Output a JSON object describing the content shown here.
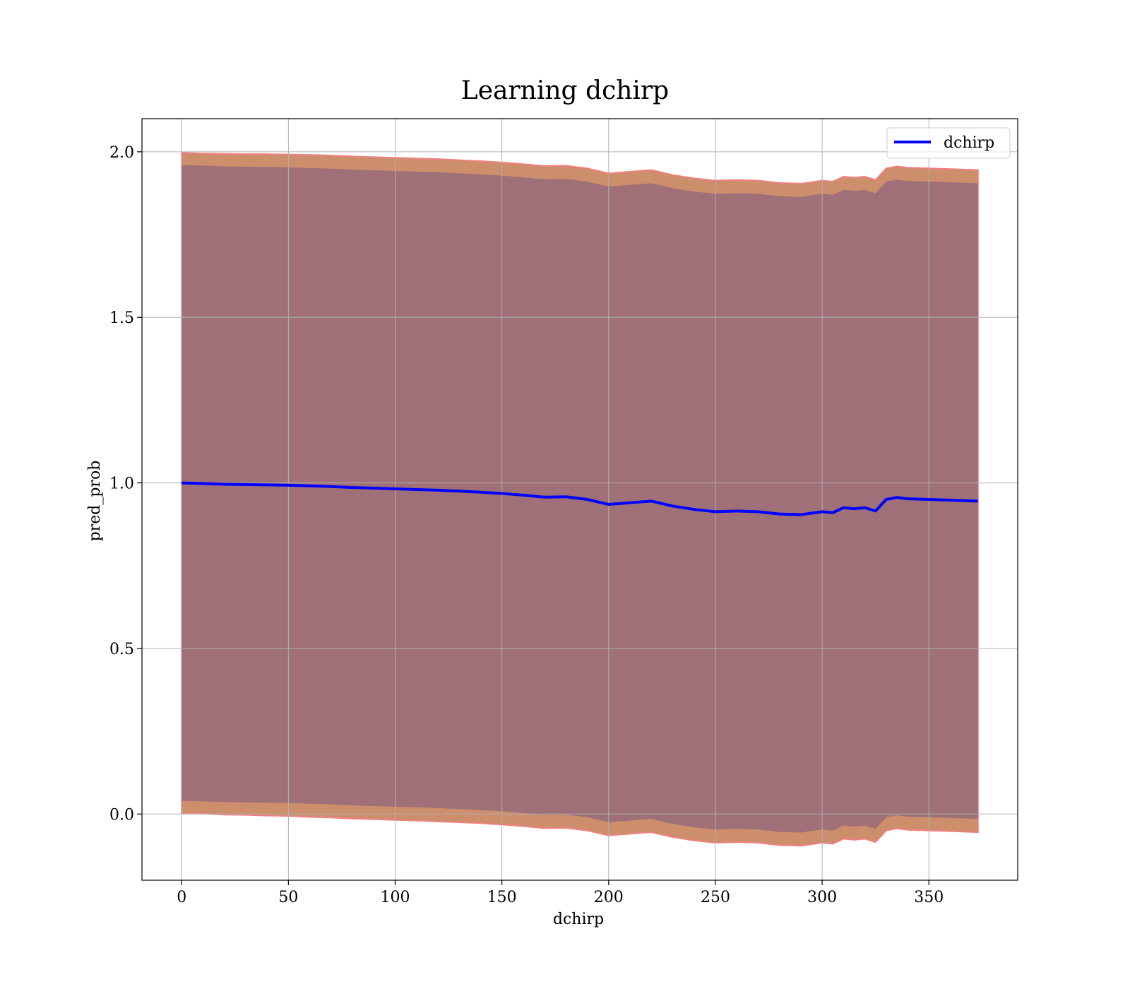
{
  "chart_data": {
    "type": "line",
    "title": "Learning dchirp",
    "xlabel": "dchirp",
    "ylabel": "pred_prob",
    "xlim": [
      -18.6,
      391.6
    ],
    "ylim": [
      -0.2,
      2.1
    ],
    "xticks": [
      0,
      50,
      100,
      150,
      200,
      250,
      300,
      350
    ],
    "xtick_labels": [
      "0",
      "50",
      "100",
      "150",
      "200",
      "250",
      "300",
      "350"
    ],
    "yticks": [
      0.0,
      0.5,
      1.0,
      1.5,
      2.0
    ],
    "ytick_labels": [
      "0.0",
      "0.5",
      "1.0",
      "1.5",
      "2.0"
    ],
    "grid": true,
    "legend": {
      "position": "top-right",
      "entries": [
        "dchirp"
      ]
    },
    "colors": {
      "line": "#0000ff",
      "outer_band": "#cd8e6c",
      "outer_band_edge": "#f08080",
      "inner_band": "#a07078",
      "grid": "#b0b0b0"
    },
    "series": [
      {
        "name": "dchirp",
        "x": [
          0,
          10,
          20,
          30,
          40,
          50,
          60,
          70,
          80,
          90,
          100,
          110,
          120,
          130,
          140,
          150,
          160,
          170,
          180,
          190,
          200,
          210,
          220,
          230,
          240,
          250,
          260,
          270,
          280,
          290,
          300,
          305,
          310,
          315,
          320,
          325,
          330,
          335,
          340,
          350,
          360,
          373
        ],
        "y": [
          1.0,
          0.998,
          0.996,
          0.995,
          0.994,
          0.993,
          0.991,
          0.989,
          0.986,
          0.984,
          0.982,
          0.98,
          0.978,
          0.975,
          0.972,
          0.968,
          0.963,
          0.957,
          0.958,
          0.95,
          0.935,
          0.94,
          0.945,
          0.93,
          0.92,
          0.913,
          0.915,
          0.913,
          0.906,
          0.904,
          0.913,
          0.91,
          0.925,
          0.922,
          0.925,
          0.915,
          0.95,
          0.956,
          0.952,
          0.95,
          0.948,
          0.945
        ]
      }
    ],
    "bands": [
      {
        "kind": "outer",
        "x": [
          0,
          10,
          20,
          30,
          40,
          50,
          60,
          70,
          80,
          90,
          100,
          110,
          120,
          130,
          140,
          150,
          160,
          170,
          180,
          190,
          200,
          210,
          220,
          230,
          240,
          250,
          260,
          270,
          280,
          290,
          300,
          305,
          310,
          315,
          320,
          325,
          330,
          335,
          340,
          350,
          360,
          373
        ],
        "lower": [
          0.003,
          0.001,
          -0.002,
          -0.003,
          -0.005,
          -0.006,
          -0.009,
          -0.011,
          -0.014,
          -0.016,
          -0.018,
          -0.02,
          -0.023,
          -0.025,
          -0.028,
          -0.032,
          -0.037,
          -0.043,
          -0.042,
          -0.05,
          -0.065,
          -0.06,
          -0.055,
          -0.07,
          -0.08,
          -0.087,
          -0.085,
          -0.087,
          -0.094,
          -0.096,
          -0.087,
          -0.09,
          -0.075,
          -0.078,
          -0.075,
          -0.085,
          -0.05,
          -0.044,
          -0.048,
          -0.05,
          -0.052,
          -0.055
        ],
        "upper": [
          1.997,
          1.995,
          1.994,
          1.993,
          1.993,
          1.992,
          1.991,
          1.989,
          1.986,
          1.984,
          1.982,
          1.98,
          1.978,
          1.975,
          1.972,
          1.968,
          1.963,
          1.957,
          1.958,
          1.95,
          1.935,
          1.94,
          1.945,
          1.93,
          1.92,
          1.913,
          1.915,
          1.913,
          1.906,
          1.904,
          1.913,
          1.91,
          1.925,
          1.922,
          1.925,
          1.915,
          1.95,
          1.956,
          1.952,
          1.95,
          1.948,
          1.945
        ]
      },
      {
        "kind": "inner",
        "x": [
          0,
          10,
          20,
          30,
          40,
          50,
          60,
          70,
          80,
          90,
          100,
          110,
          120,
          130,
          140,
          150,
          160,
          170,
          180,
          190,
          200,
          210,
          220,
          230,
          240,
          250,
          260,
          270,
          280,
          290,
          300,
          305,
          310,
          315,
          320,
          325,
          330,
          335,
          340,
          350,
          360,
          373
        ],
        "lower": [
          0.04,
          0.038,
          0.036,
          0.035,
          0.034,
          0.033,
          0.031,
          0.029,
          0.026,
          0.024,
          0.022,
          0.02,
          0.018,
          0.015,
          0.012,
          0.008,
          0.003,
          -0.003,
          -0.002,
          -0.01,
          -0.025,
          -0.02,
          -0.015,
          -0.03,
          -0.04,
          -0.047,
          -0.045,
          -0.047,
          -0.054,
          -0.056,
          -0.047,
          -0.05,
          -0.035,
          -0.038,
          -0.035,
          -0.045,
          -0.01,
          -0.004,
          -0.008,
          -0.01,
          -0.012,
          -0.015
        ],
        "upper": [
          1.96,
          1.958,
          1.956,
          1.955,
          1.954,
          1.953,
          1.951,
          1.949,
          1.946,
          1.944,
          1.942,
          1.94,
          1.938,
          1.935,
          1.932,
          1.928,
          1.923,
          1.917,
          1.918,
          1.91,
          1.895,
          1.9,
          1.905,
          1.89,
          1.88,
          1.873,
          1.875,
          1.873,
          1.866,
          1.864,
          1.873,
          1.87,
          1.885,
          1.882,
          1.885,
          1.875,
          1.91,
          1.916,
          1.912,
          1.91,
          1.908,
          1.905
        ]
      }
    ]
  }
}
